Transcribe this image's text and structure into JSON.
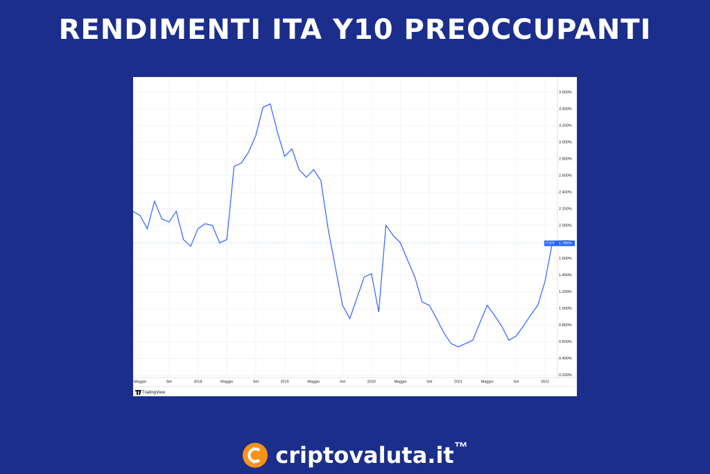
{
  "chart_data": {
    "type": "line",
    "title": "RENDIMENTI ITA Y10 PREOCCUPANTI",
    "categories": [
      null,
      "Maggio",
      null,
      null,
      null,
      "Set",
      null,
      null,
      null,
      "2018",
      null,
      null,
      null,
      "Maggio",
      null,
      null,
      null,
      "Set",
      null,
      null,
      null,
      "2019",
      null,
      null,
      null,
      "Maggio",
      null,
      null,
      null,
      "Set",
      null,
      null,
      null,
      "2020",
      null,
      null,
      null,
      "Maggio",
      null,
      null,
      null,
      "Set",
      null,
      null,
      null,
      "2021",
      null,
      null,
      null,
      "Maggio",
      null,
      null,
      null,
      "Set",
      null,
      null,
      null,
      "2022",
      null
    ],
    "series": [
      {
        "name": "IT10Y",
        "color": "#2962ff",
        "values": [
          2.17,
          2.12,
          1.96,
          2.29,
          2.08,
          2.04,
          2.17,
          1.83,
          1.75,
          1.96,
          2.02,
          2.0,
          1.79,
          1.83,
          2.71,
          2.75,
          2.88,
          3.08,
          3.42,
          3.46,
          3.12,
          2.83,
          2.92,
          2.67,
          2.58,
          2.67,
          2.54,
          1.96,
          1.5,
          1.04,
          0.88,
          1.13,
          1.38,
          1.42,
          0.96,
          2.0,
          1.88,
          1.79,
          1.58,
          1.38,
          1.08,
          1.04,
          0.88,
          0.71,
          0.58,
          0.54,
          0.58,
          0.62,
          0.83,
          1.04,
          0.92,
          0.79,
          0.62,
          0.67,
          0.79,
          0.92,
          1.04,
          1.33,
          1.785
        ]
      }
    ],
    "price_badge": {
      "symbol": "IT10Y",
      "label": "1.785%"
    },
    "source": "TradingView",
    "ylim": [
      0.18,
      3.75
    ],
    "yticks": [
      {
        "value": 0.2,
        "label": "0.200%"
      },
      {
        "value": 0.4,
        "label": "0.400%"
      },
      {
        "value": 0.6,
        "label": "0.600%"
      },
      {
        "value": 0.8,
        "label": "0.800%"
      },
      {
        "value": 1.0,
        "label": "1.000%"
      },
      {
        "value": 1.2,
        "label": "1.200%"
      },
      {
        "value": 1.4,
        "label": "1.400%"
      },
      {
        "value": 1.6,
        "label": "1.600%"
      },
      {
        "value": 1.8,
        "label": "1.800%"
      },
      {
        "value": 2.0,
        "label": "2.000%"
      },
      {
        "value": 2.2,
        "label": "2.200%"
      },
      {
        "value": 2.4,
        "label": "2.400%"
      },
      {
        "value": 2.6,
        "label": "2.600%"
      },
      {
        "value": 2.8,
        "label": "2.800%"
      },
      {
        "value": 3.0,
        "label": "3.000%"
      },
      {
        "value": 3.2,
        "label": "3.200%"
      },
      {
        "value": 3.4,
        "label": "3.400%"
      },
      {
        "value": 3.6,
        "label": "3.600%"
      }
    ],
    "grid": true
  },
  "footer": {
    "brand": "criptovaluta.it",
    "trademark": "™"
  }
}
